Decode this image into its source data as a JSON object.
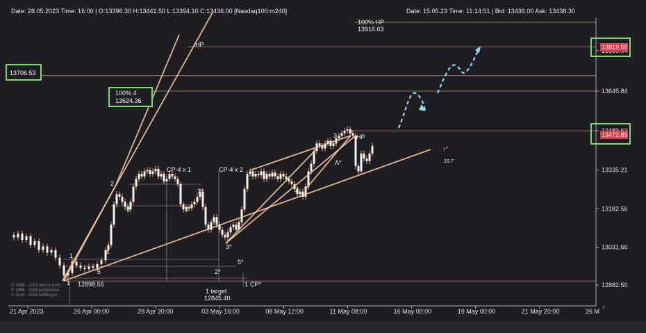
{
  "header": {
    "left": "Date: 28.05.2023 Time: 16:00 | O:13396.30 H:13441.50 L:13394.10 C:13436.00 [Nasdaq100:m240]",
    "right": "Date: 15.05.23 Time: 11:14:51 | Bid: 13436.00 Ask: 13438.30"
  },
  "colors": {
    "background": "#1e1e22",
    "candle": "#f4f4f4",
    "wick_accent": "#e8a06a",
    "wave_line": "#f2c6a0",
    "level_line": "#d9a07a",
    "highlight_box": "#7ddc6a",
    "price_badge": "#e03a4a",
    "projection": "#8fdcec"
  },
  "chart_data": {
    "type": "line",
    "subtype": "candlestick",
    "symbol": "Nasdaq100:m240",
    "ylim": [
      12860,
      13990
    ],
    "y_ticks": [
      12882.5,
      13031.66,
      13182.56,
      13335.21,
      13489.63,
      13645.84,
      13805.04
    ],
    "y_tick_labels": [
      "12882.50",
      "13031.66",
      "13182.56",
      "13335.21",
      "13489.63",
      "13645.84",
      "13805.04"
    ],
    "x_ticks": [
      "21 Apr 2023",
      "26 Apr 00:00",
      "28 Apr 20:00",
      "03 May 16:00",
      "08 May 12:00",
      "11 May 08:00",
      "16 May 00:00",
      "19 May 00:00",
      "21 May 20:00",
      "26 M"
    ],
    "horizontal_levels": [
      13916.63,
      13819.56,
      13706.53,
      13645.84,
      13489.63,
      12898.56
    ],
    "highlighted_prices": [
      {
        "label": "13706.53",
        "side": "left"
      },
      {
        "label": "13819.56",
        "side": "right"
      },
      {
        "label": "13472.89",
        "side": "right"
      }
    ],
    "annotations": {
      "hp_top": "100% HP",
      "hp_top_value": "13916.63",
      "hp_label": "HP",
      "hp_label2": "HP",
      "box_pct": "100%  4",
      "box_value": "13624.36",
      "cp1": "CP-4 x 1",
      "cp2": "CP-4 x 2",
      "low_value": "12898.56",
      "target_label": "1 target",
      "target_value": "12845.40",
      "cp_star": "CP*",
      "a_star": "A*",
      "arrow_star": "↑*",
      "arrow_value": "19.7",
      "waves": [
        "1",
        "2",
        "3",
        "4",
        "5",
        "3*",
        "4*",
        "5*",
        "2*",
        "3*",
        "1",
        "2",
        "3",
        "4",
        "1"
      ]
    },
    "watermark": [
      "© 1996 - 2023 tactica.tools",
      "© 1996 - 2023 protoforma",
      "© 2010 - 2023 skillful.pro"
    ]
  }
}
